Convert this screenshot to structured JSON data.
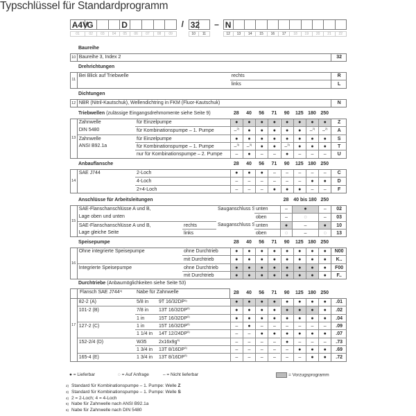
{
  "title": "Typschlüssel für Standardprogramm",
  "type_code": {
    "boxes": [
      {
        "value": "A4V",
        "label": "01"
      },
      {
        "value": "G",
        "label": "02"
      },
      {
        "value": "",
        "label": "03"
      },
      {
        "value": "",
        "label": "04"
      },
      {
        "value": "D",
        "label": "05"
      },
      {
        "value": "",
        "label": "06"
      },
      {
        "value": "",
        "label": "07"
      },
      {
        "value": "",
        "label": "08"
      },
      {
        "value": "",
        "label": "09"
      },
      {
        "sep": "/"
      },
      {
        "value": "32",
        "label": "10",
        "dark": true
      },
      {
        "value": "",
        "label": "11",
        "dark": true
      },
      {
        "sep": "–"
      },
      {
        "value": "N",
        "label": "12",
        "dark": true
      },
      {
        "value": "",
        "label": "13",
        "dark": true
      },
      {
        "value": "",
        "label": "14",
        "dark": true
      },
      {
        "value": "",
        "label": "15",
        "dark": true
      },
      {
        "value": "",
        "label": "16",
        "dark": true
      },
      {
        "value": "",
        "label": "17",
        "dark": true
      },
      {
        "value": "",
        "label": "18"
      },
      {
        "value": "",
        "label": "19"
      },
      {
        "value": "",
        "label": "20"
      },
      {
        "value": "",
        "label": "21"
      },
      {
        "value": "",
        "label": "22"
      }
    ]
  },
  "sections": [
    {
      "id": "baureihe",
      "num": "10",
      "title": "Baureihe",
      "rows": [
        {
          "a": "Baureihe 3, Index 2",
          "code": "32"
        }
      ]
    },
    {
      "id": "dreh",
      "num": "11",
      "title": "Drehrichtungen",
      "rows": [
        {
          "a": "Bei Blick auf Triebwelle",
          "b": "rechts",
          "code": "R"
        },
        {
          "b": "links",
          "code": "L"
        }
      ]
    },
    {
      "id": "dicht",
      "num": "12",
      "title": "Dichtungen",
      "rows": [
        {
          "a": "NBR (Nitril-Kautschuk), Wellendichtring in FKM (Fluor-Kautschuk)",
          "code": "N"
        }
      ]
    },
    {
      "id": "trieb",
      "num": "13",
      "title": "Triebwellen",
      "note": " (zulässige Eingangsdrehmomente siehe Seite 9)",
      "sizes": [
        "28",
        "40",
        "56",
        "71",
        "90",
        "125",
        "180",
        "250"
      ],
      "rows": [
        {
          "a": "Zahnwelle",
          "b": "für Einzelpumpe",
          "cells": [
            "●",
            "●",
            "●",
            "●",
            "●",
            "●",
            "●",
            "●"
          ],
          "shade": [
            0,
            1,
            2,
            3,
            4,
            5,
            6,
            7
          ],
          "code": "Z"
        },
        {
          "a": "DIN 5480",
          "b": "für Kombinationspumpe – 1. Pumpe",
          "cells": [
            "–|2)",
            "●",
            "●",
            "●",
            "●",
            "●",
            "–|2)",
            "–|2)"
          ],
          "code": "A"
        },
        {
          "g": true,
          "a": "Zahnwelle",
          "b": "für Einzelpumpe",
          "cells": [
            "●",
            "●",
            "●",
            "●",
            "●",
            "●",
            "●",
            "●"
          ],
          "code": "S"
        },
        {
          "a": "ANSI B92.1a",
          "b": "für Kombinationspumpe – 1. Pumpe",
          "cells": [
            "–|3)",
            "–|3)",
            "●",
            "●",
            "–|3)",
            "●",
            "●",
            "●"
          ],
          "code": "T"
        },
        {
          "b": "nur für Kombinationspumpe – 2. Pumpe",
          "cells": [
            "–",
            "●",
            "–",
            "–",
            "●",
            "–",
            "–",
            "–"
          ],
          "code": "U"
        }
      ]
    },
    {
      "id": "anbau",
      "num": "14",
      "title": "Anbauflansche",
      "sizes": [
        "28",
        "40",
        "56",
        "71",
        "90",
        "125",
        "180",
        "250"
      ],
      "rows": [
        {
          "a": "SAE J744",
          "b": "2-Loch",
          "cells": [
            "●",
            "●",
            "●",
            "–",
            "–",
            "–",
            "–",
            "–"
          ],
          "code": "C"
        },
        {
          "b": "4-Loch",
          "cells": [
            "–",
            "–",
            "–",
            "–",
            "–",
            "–",
            "●",
            "●"
          ],
          "code": "D"
        },
        {
          "b": "2+4-Loch",
          "cells": [
            "–",
            "–",
            "–",
            "●",
            "●",
            "●",
            "–",
            "–"
          ],
          "code": "F"
        }
      ]
    },
    {
      "id": "ansch",
      "num": "15",
      "title": "Anschlüsse für Arbeitsleitungen",
      "sizes": [
        "28",
        "40 bis 180",
        "250"
      ],
      "rows": [
        {
          "a": "SAE-Flanschanschlüsse A und B,",
          "c": "Sauganschluss S",
          "d": "unten",
          "cells": [
            "–",
            "●",
            "–"
          ],
          "shade": [
            1
          ],
          "code": "02"
        },
        {
          "a": "Lage oben und unten",
          "d": "oben",
          "cells": [
            "–",
            "◌",
            "–"
          ],
          "code": "03"
        },
        {
          "g": true,
          "a": "SAE-Flanschanschlüsse A und B,",
          "b": "rechts",
          "c": "Sauganschluss S",
          "d": "unten",
          "cells": [
            "●",
            "–",
            "●"
          ],
          "shade": [
            0,
            2
          ],
          "code": "10"
        },
        {
          "a": "Lage gleiche Seite",
          "b": "links",
          "d": "oben",
          "cells": [
            "◌",
            "–",
            "◌"
          ],
          "code": "13"
        }
      ]
    },
    {
      "id": "speise",
      "num": "16",
      "title": "Speisepumpe",
      "sizes": [
        "28",
        "40",
        "56",
        "71",
        "90",
        "125",
        "180",
        "250"
      ],
      "rows": [
        {
          "a": "Ohne integrierte Speisepumpe",
          "b": "ohne Durchtrieb",
          "cells": [
            "●",
            "●",
            "●",
            "●",
            "●",
            "●",
            "●",
            "●"
          ],
          "code": "N00"
        },
        {
          "b": "mit Durchtrieb",
          "cells": [
            "●",
            "●",
            "●",
            "●",
            "●",
            "●",
            "●",
            "●"
          ],
          "code": "K.."
        },
        {
          "g": true,
          "a": "Integrierte Speisepumpe",
          "b": "ohne Durchtrieb",
          "cells": [
            "●",
            "●",
            "●",
            "●",
            "●",
            "●",
            "●",
            "●"
          ],
          "shade": [
            0,
            1,
            2,
            3,
            4,
            5,
            6
          ],
          "code": "F00"
        },
        {
          "b": "mit Durchtrieb",
          "cells": [
            "●",
            "●",
            "●",
            "●",
            "●",
            "●",
            "●",
            "●"
          ],
          "shade": [
            0,
            1,
            2,
            3,
            4,
            5,
            6
          ],
          "code": "F.."
        }
      ]
    },
    {
      "id": "durch",
      "num": "17",
      "title": "Durchtriebe",
      "note": " (Anbaumöglichkeiten siehe Seite 53)",
      "header": {
        "a": "Flansch SAE J744",
        "a_sup": "4)",
        "b": "Nabe für Zahnwelle"
      },
      "sizes": [
        "28",
        "40",
        "56",
        "71",
        "90",
        "125",
        "180",
        "250"
      ],
      "rows": [
        {
          "a": "82-2 (A)",
          "b": "5/8 in",
          "c": "9T 16/32DP",
          "c_sup": "5)",
          "cells": [
            "●",
            "●",
            "●",
            "●",
            "●",
            "●",
            "●",
            "●"
          ],
          "shade": [
            0,
            1,
            2,
            3
          ],
          "code": ".01"
        },
        {
          "g": true,
          "a": "101-2 (B)",
          "b": "7/8 in",
          "c": "13T 16/32DP",
          "c_sup": "5)",
          "cells": [
            "●",
            "●",
            "●",
            "●",
            "●",
            "●",
            "●",
            "●"
          ],
          "shade": [
            4,
            5,
            6
          ],
          "code": ".02"
        },
        {
          "b": "1 in",
          "c": "15T 16/32DP",
          "c_sup": "5)",
          "cells": [
            "●",
            "●",
            "●",
            "●",
            "●",
            "●",
            "●",
            "●"
          ],
          "code": ".04"
        },
        {
          "g": true,
          "a": "127-2 (C)",
          "b": "1 in",
          "c": "15T 16/32DP",
          "c_sup": "5)",
          "cells": [
            "–",
            "●",
            "–",
            "–",
            "–",
            "–",
            "–",
            "–"
          ],
          "code": ".09"
        },
        {
          "b": "1 1/4 in",
          "c": "14T 12/24DP",
          "c_sup": "5)",
          "cells": [
            "–",
            "–",
            "●",
            "●",
            "●",
            "●",
            "●",
            "●"
          ],
          "code": ".07"
        },
        {
          "g": true,
          "a": "152-2/4 (D)",
          "b": "W35",
          "c": "2x16x9g",
          "c_sup": "6)",
          "cells": [
            "–",
            "–",
            "–",
            "–",
            "●",
            "–",
            "–",
            "–"
          ],
          "code": ".73"
        },
        {
          "b": "1 3/4 in",
          "c": "13T 8/16DP",
          "c_sup": "5)",
          "cells": [
            "–",
            "–",
            "–",
            "–",
            "–",
            "●",
            "●",
            "●"
          ],
          "code": ".69"
        },
        {
          "g": true,
          "a": "165-4 (E)",
          "b": "1 3/4 in",
          "c": "13T 8/16DP",
          "c_sup": "5)",
          "cells": [
            "–",
            "–",
            "–",
            "–",
            "–",
            "–",
            "●",
            "●"
          ],
          "code": ".72"
        }
      ]
    }
  ],
  "legend": {
    "available": "● = Lieferbar",
    "on_request": "◌ = Auf Anfrage",
    "not_available": "– = Nicht lieferbar",
    "preferred": "= Vorzugsprogramm",
    "preferred_color": "#bbbbbb"
  },
  "footnotes": [
    {
      "mark": "2)",
      "text": "Standard für Kombinationspumpe – 1. Pumpe: Welle ",
      "bold": "Z"
    },
    {
      "mark": "3)",
      "text": "Standard für Kombinationspumpe – 1. Pumpe: Welle ",
      "bold": "S"
    },
    {
      "mark": "4)",
      "text": "2 = 2-Loch; 4 = 4-Loch"
    },
    {
      "mark": "5)",
      "text": "Nabe für Zahnwelle nach ANSI B92.1a"
    },
    {
      "mark": "6)",
      "text": "Nabe für Zahnwelle nach DIN 5480"
    }
  ]
}
